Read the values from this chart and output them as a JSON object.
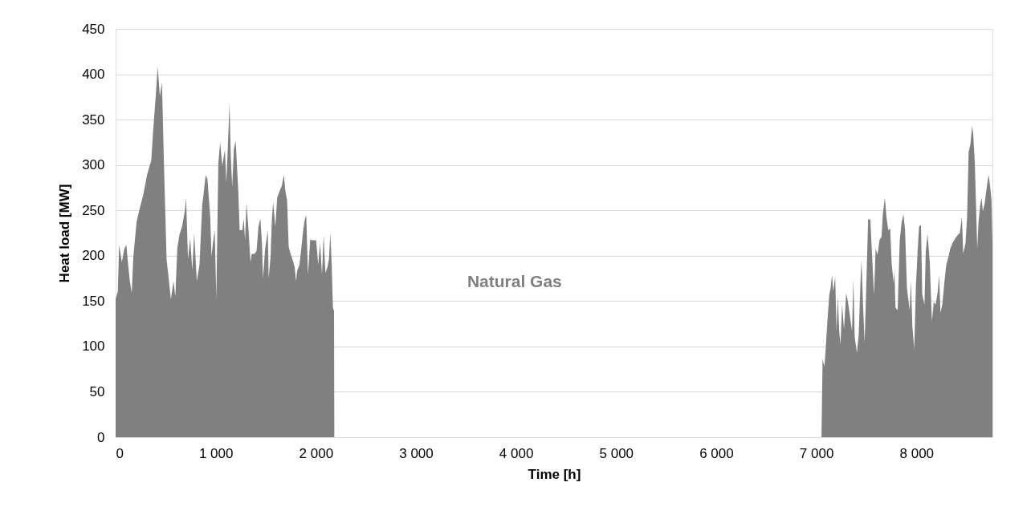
{
  "chart_data": {
    "type": "area",
    "xlabel": "Time [h]",
    "ylabel": "Heat load [MW]",
    "xlim": [
      0,
      8760
    ],
    "ylim": [
      0,
      450
    ],
    "xticks": [
      0,
      {
        "value": 1000,
        "label": "1 000"
      },
      {
        "value": 2000,
        "label": "2 000"
      },
      {
        "value": 3000,
        "label": "3 000"
      },
      {
        "value": 4000,
        "label": "4 000"
      },
      {
        "value": 5000,
        "label": "5 000"
      },
      {
        "value": 6000,
        "label": "6 000"
      },
      {
        "value": 7000,
        "label": "7 000"
      },
      {
        "value": 8000,
        "label": "8 000"
      }
    ],
    "yticks": [
      0,
      50,
      100,
      150,
      200,
      250,
      300,
      350,
      400,
      450
    ],
    "grid": "y",
    "legend": false,
    "series": [
      {
        "name": "Natural Gas",
        "color": "#808080",
        "x": [
          0,
          22,
          35,
          62,
          88,
          107,
          128,
          142,
          161,
          177,
          209,
          236,
          276,
          316,
          356,
          375,
          402,
          420,
          442,
          463,
          482,
          509,
          530,
          552,
          578,
          597,
          616,
          637,
          664,
          691,
          704,
          723,
          745,
          766,
          785,
          811,
          838,
          865,
          900,
          918,
          945,
          958,
          972,
          990,
          1006,
          1026,
          1044,
          1066,
          1092,
          1106,
          1119,
          1138,
          1151,
          1165,
          1181,
          1199,
          1226,
          1239,
          1266,
          1280,
          1293,
          1307,
          1328,
          1347,
          1360,
          1387,
          1408,
          1427,
          1446,
          1462,
          1472,
          1494,
          1520,
          1529,
          1548,
          1561,
          1574,
          1596,
          1614,
          1641,
          1660,
          1681,
          1695,
          1713,
          1729,
          1748,
          1767,
          1789,
          1802,
          1815,
          1837,
          1855,
          1874,
          1890,
          1904,
          1922,
          1944,
          1962,
          1982,
          2003,
          2024,
          2043,
          2062,
          2078,
          2096,
          2115,
          2131,
          2145,
          2158,
          2171,
          2182,
          2185,
          7052,
          7063,
          7082,
          7095,
          7111,
          7130,
          7143,
          7157,
          7170,
          7189,
          7202,
          7215,
          7229,
          7242,
          7258,
          7277,
          7299,
          7317,
          7339,
          7357,
          7371,
          7384,
          7406,
          7424,
          7444,
          7452,
          7468,
          7483,
          7499,
          7518,
          7540,
          7558,
          7577,
          7593,
          7612,
          7631,
          7652,
          7665,
          7685,
          7701,
          7719,
          7738,
          7754,
          7773,
          7781,
          7791,
          7813,
          7834,
          7853,
          7871,
          7887,
          7906,
          7933,
          7946,
          7960,
          7979,
          7995,
          8014,
          8027,
          8046,
          8059,
          8081,
          8094,
          8112,
          8134,
          8155,
          8174,
          8193,
          8214,
          8227,
          8241,
          8259,
          8281,
          8299,
          8321,
          8339,
          8361,
          8388,
          8415,
          8434,
          8455,
          8468,
          8491,
          8507,
          8522,
          8540,
          8557,
          8568,
          8584,
          8597,
          8608,
          8621,
          8637,
          8651,
          8664,
          8683,
          8697,
          8710,
          8723,
          8737,
          8751,
          8760
        ],
        "values": [
          152,
          161,
          212,
          193,
          208,
          212,
          187,
          172,
          159,
          199,
          237,
          250,
          267,
          290,
          305,
          338,
          378,
          408,
          376,
          391,
          305,
          196,
          175,
          152,
          172,
          155,
          208,
          223,
          232,
          249,
          264,
          196,
          219,
          184,
          225,
          172,
          190,
          255,
          289,
          284,
          243,
          199,
          214,
          228,
          152,
          302,
          325,
          299,
          317,
          281,
          314,
          368,
          308,
          276,
          317,
          327,
          270,
          228,
          228,
          241,
          217,
          258,
          228,
          193,
          202,
          202,
          205,
          232,
          241,
          214,
          175,
          208,
          228,
          175,
          199,
          240,
          259,
          232,
          264,
          272,
          277,
          289,
          272,
          261,
          210,
          202,
          196,
          187,
          172,
          184,
          190,
          208,
          228,
          240,
          245,
          179,
          218,
          217,
          217,
          217,
          190,
          214,
          179,
          223,
          181,
          187,
          196,
          225,
          193,
          143,
          139,
          0,
          0,
          86,
          78,
          99,
          128,
          157,
          164,
          179,
          161,
          177,
          117,
          155,
          117,
          102,
          146,
          119,
          159,
          149,
          131,
          117,
          175,
          110,
          93,
          113,
          179,
          195,
          143,
          104,
          164,
          240,
          240,
          199,
          157,
          208,
          201,
          217,
          221,
          246,
          264,
          243,
          228,
          230,
          190,
          170,
          184,
          143,
          140,
          217,
          237,
          246,
          228,
          164,
          140,
          172,
          122,
          97,
          166,
          208,
          232,
          234,
          157,
          146,
          205,
          224,
          193,
          128,
          149,
          146,
          161,
          179,
          137,
          146,
          172,
          190,
          199,
          208,
          214,
          219,
          223,
          225,
          243,
          202,
          214,
          243,
          314,
          323,
          343,
          334,
          302,
          252,
          208,
          237,
          255,
          264,
          249,
          258,
          270,
          281,
          289,
          276,
          261,
          214
        ]
      }
    ]
  }
}
